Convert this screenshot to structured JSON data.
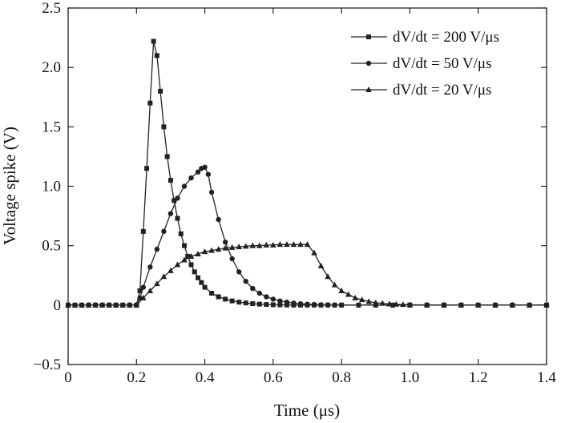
{
  "chart_data": {
    "type": "line",
    "xlabel": "Time (μs)",
    "ylabel": "Voltage spike (V)",
    "xlim": [
      0,
      1.4
    ],
    "ylim": [
      -0.5,
      2.5
    ],
    "xticks": [
      "0",
      "0.2",
      "0.4",
      "0.6",
      "0.8",
      "1.0",
      "1.2",
      "1.4"
    ],
    "yticks": [
      "−0.5",
      "0",
      "0.5",
      "1.0",
      "1.5",
      "2.0",
      "2.5"
    ],
    "grid": false,
    "legend_position": "top-right",
    "series": [
      {
        "name": "dV/dt = 200 V/μs",
        "marker": "square",
        "x": [
          0,
          0.02,
          0.04,
          0.06,
          0.08,
          0.1,
          0.12,
          0.14,
          0.16,
          0.18,
          0.2,
          0.21,
          0.22,
          0.23,
          0.24,
          0.25,
          0.26,
          0.27,
          0.28,
          0.29,
          0.3,
          0.31,
          0.32,
          0.33,
          0.34,
          0.35,
          0.36,
          0.37,
          0.38,
          0.39,
          0.4,
          0.42,
          0.44,
          0.46,
          0.48,
          0.5,
          0.52,
          0.54,
          0.56,
          0.58,
          0.6,
          0.62,
          0.64,
          0.66,
          0.68,
          0.7,
          0.72,
          0.74,
          0.76,
          0.78,
          0.8,
          0.85,
          0.9,
          0.95,
          1.0,
          1.05,
          1.1,
          1.15,
          1.2,
          1.25,
          1.3,
          1.35,
          1.4
        ],
        "y": [
          0,
          0,
          0,
          0,
          0,
          0,
          0,
          0,
          0,
          0,
          0,
          0.12,
          0.62,
          1.15,
          1.7,
          2.22,
          2.1,
          1.8,
          1.5,
          1.25,
          1.05,
          0.88,
          0.73,
          0.6,
          0.5,
          0.41,
          0.34,
          0.28,
          0.23,
          0.19,
          0.15,
          0.1,
          0.07,
          0.05,
          0.035,
          0.025,
          0.018,
          0.012,
          0.008,
          0.005,
          0.003,
          0.002,
          0.001,
          0,
          0,
          0,
          0,
          0,
          0,
          0,
          0,
          0,
          0,
          0,
          0,
          0,
          0,
          0,
          0,
          0,
          0,
          0,
          0
        ]
      },
      {
        "name": "dV/dt = 50 V/μs",
        "marker": "circle",
        "x": [
          0,
          0.02,
          0.04,
          0.06,
          0.08,
          0.1,
          0.12,
          0.14,
          0.16,
          0.18,
          0.2,
          0.21,
          0.22,
          0.24,
          0.26,
          0.28,
          0.3,
          0.32,
          0.34,
          0.36,
          0.38,
          0.39,
          0.4,
          0.41,
          0.42,
          0.44,
          0.46,
          0.48,
          0.5,
          0.52,
          0.54,
          0.56,
          0.58,
          0.6,
          0.62,
          0.64,
          0.66,
          0.68,
          0.7,
          0.72,
          0.74,
          0.76,
          0.78,
          0.8,
          0.85,
          0.9,
          0.95,
          1.0,
          1.05,
          1.1,
          1.15,
          1.2,
          1.25,
          1.3,
          1.35,
          1.4
        ],
        "y": [
          0,
          0,
          0,
          0,
          0,
          0,
          0,
          0,
          0,
          0,
          0,
          0.06,
          0.15,
          0.32,
          0.47,
          0.62,
          0.77,
          0.9,
          1.0,
          1.07,
          1.12,
          1.15,
          1.16,
          1.1,
          0.95,
          0.72,
          0.53,
          0.39,
          0.28,
          0.2,
          0.14,
          0.1,
          0.07,
          0.05,
          0.035,
          0.025,
          0.017,
          0.012,
          0.008,
          0.005,
          0.003,
          0.002,
          0.001,
          0,
          0,
          0,
          0,
          0,
          0,
          0,
          0,
          0,
          0,
          0,
          0,
          0
        ]
      },
      {
        "name": "dV/dt = 20 V/μs",
        "marker": "triangle",
        "x": [
          0,
          0.02,
          0.04,
          0.06,
          0.08,
          0.1,
          0.12,
          0.14,
          0.16,
          0.18,
          0.2,
          0.22,
          0.24,
          0.26,
          0.28,
          0.3,
          0.32,
          0.34,
          0.36,
          0.38,
          0.4,
          0.42,
          0.44,
          0.46,
          0.48,
          0.5,
          0.52,
          0.54,
          0.56,
          0.58,
          0.6,
          0.62,
          0.64,
          0.66,
          0.68,
          0.7,
          0.72,
          0.74,
          0.76,
          0.78,
          0.8,
          0.82,
          0.84,
          0.86,
          0.88,
          0.9,
          0.92,
          0.94,
          0.96,
          0.98,
          1.0,
          1.05,
          1.1,
          1.15,
          1.2,
          1.25,
          1.3,
          1.35,
          1.4
        ],
        "y": [
          0,
          0,
          0,
          0,
          0,
          0,
          0,
          0,
          0,
          0,
          0,
          0.06,
          0.12,
          0.18,
          0.24,
          0.29,
          0.34,
          0.38,
          0.41,
          0.43,
          0.45,
          0.46,
          0.47,
          0.48,
          0.485,
          0.49,
          0.495,
          0.5,
          0.5,
          0.505,
          0.505,
          0.51,
          0.51,
          0.51,
          0.51,
          0.51,
          0.44,
          0.33,
          0.24,
          0.17,
          0.12,
          0.09,
          0.06,
          0.045,
          0.03,
          0.02,
          0.015,
          0.01,
          0.007,
          0.005,
          0.003,
          0.001,
          0,
          0,
          0,
          0,
          0,
          0,
          0
        ]
      }
    ]
  }
}
